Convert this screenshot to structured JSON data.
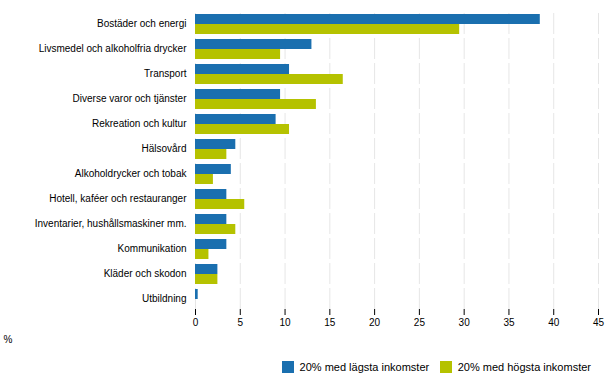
{
  "chart_data": {
    "type": "bar",
    "orientation": "horizontal",
    "categories": [
      "Bostäder och energi",
      "Livsmedel och alkoholfria drycker",
      "Transport",
      "Diverse varor och tjänster",
      "Rekreation och kultur",
      "Hälsovård",
      "Alkoholdrycker och tobak",
      "Hotell, kaféer och restauranger",
      "Inventarier, hushållsmaskiner mm.",
      "Kommunikation",
      "Kläder och skodon",
      "Utbildning"
    ],
    "series": [
      {
        "name": "20% med lägsta inkomster",
        "color": "#1a6faf",
        "values": [
          38.5,
          13.0,
          10.5,
          9.5,
          9.0,
          4.5,
          4.0,
          3.5,
          3.5,
          3.5,
          2.5,
          0.3
        ]
      },
      {
        "name": "20% med högsta inkomster",
        "color": "#b5c200",
        "values": [
          29.5,
          9.5,
          16.5,
          13.5,
          10.5,
          3.5,
          2.0,
          5.5,
          4.5,
          1.5,
          2.5,
          0.0
        ]
      }
    ],
    "xlim": [
      0,
      45
    ],
    "xticks": [
      0,
      5,
      10,
      15,
      20,
      25,
      30,
      35,
      40,
      45
    ],
    "xlabel": "%",
    "grid": true,
    "legend": "lower right"
  }
}
